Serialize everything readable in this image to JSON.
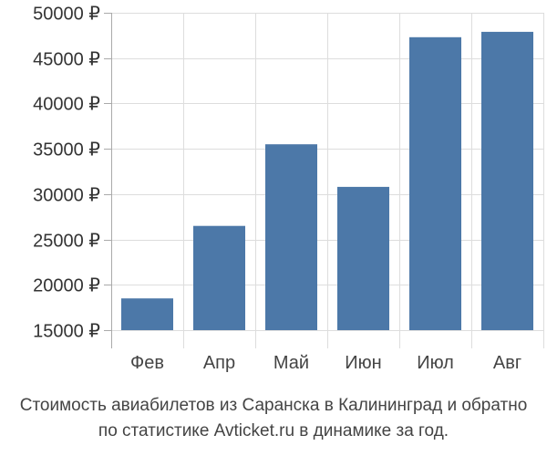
{
  "chart_data": {
    "type": "bar",
    "categories": [
      "Фев",
      "Апр",
      "Май",
      "Июн",
      "Июл",
      "Авг"
    ],
    "values": [
      18500,
      26500,
      35500,
      30800,
      47300,
      47900
    ],
    "ylim": [
      15000,
      50000
    ],
    "yticks": [
      15000,
      20000,
      25000,
      30000,
      35000,
      40000,
      45000,
      50000
    ],
    "ytick_labels": [
      "15000 ₽",
      "20000 ₽",
      "25000 ₽",
      "30000 ₽",
      "35000 ₽",
      "40000 ₽",
      "45000 ₽",
      "50000 ₽"
    ],
    "grid": true,
    "bar_color": "#4c78a8",
    "grid_color": "#dddddd",
    "axis_color": "#aaaaaa"
  },
  "caption": {
    "line1": "Стоимость авиабилетов из Саранска в Калининград и обратно",
    "line2": "по статистике Avticket.ru в динамике за год."
  }
}
